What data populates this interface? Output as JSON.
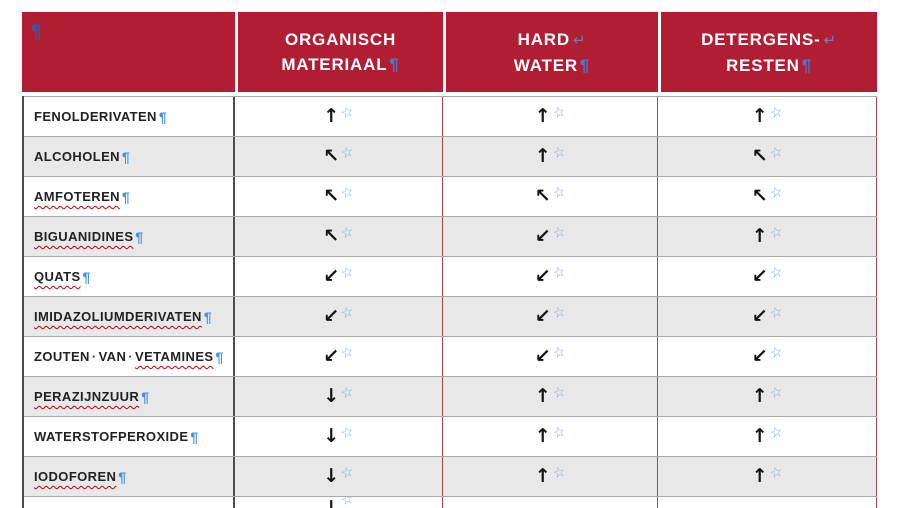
{
  "table": {
    "header": {
      "corner_pilcrow": "¶",
      "columns": [
        {
          "line1": "ORGANISCH",
          "line2": "MATERIAAL",
          "pilcrow": "¶"
        },
        {
          "line1": "HARD",
          "break_mark": "↵",
          "line2": "WATER",
          "pilcrow": "¶"
        },
        {
          "line1": "DETERGENS-",
          "break_mark": "↵",
          "line2": "RESTEN",
          "pilcrow": "¶"
        }
      ]
    },
    "rows": [
      {
        "zebra": false,
        "label": [
          {
            "t": "FENOLDERIVATEN"
          }
        ],
        "cells": [
          "up",
          "up",
          "up"
        ]
      },
      {
        "zebra": true,
        "label": [
          {
            "t": "ALCOHOLEN"
          }
        ],
        "cells": [
          "up_left",
          "up",
          "up_left"
        ]
      },
      {
        "zebra": false,
        "label": [
          {
            "t": "AMFOTEREN",
            "wavy": true
          }
        ],
        "cells": [
          "up_left",
          "up_left",
          "up_left"
        ]
      },
      {
        "zebra": true,
        "label": [
          {
            "t": "BIGUANIDINES",
            "wavy": true
          }
        ],
        "cells": [
          "up_left",
          "down_left",
          "up"
        ]
      },
      {
        "zebra": false,
        "label": [
          {
            "t": "QUATS",
            "wavy": true
          }
        ],
        "cells": [
          "down_left",
          "down_left",
          "down_left"
        ]
      },
      {
        "zebra": true,
        "label": [
          {
            "t": "IMIDAZOLIUMDERIVATEN",
            "wavy": true
          }
        ],
        "cells": [
          "down_left",
          "down_left",
          "down_left"
        ]
      },
      {
        "zebra": false,
        "label": [
          {
            "t": "ZOUTEN"
          },
          {
            "t": "·",
            "dot": true
          },
          {
            "t": "VAN"
          },
          {
            "t": "·",
            "dot": true
          },
          {
            "t": "VETAMINES",
            "wavy": true
          }
        ],
        "cells": [
          "down_left",
          "down_left",
          "down_left"
        ]
      },
      {
        "zebra": true,
        "label": [
          {
            "t": "PERAZIJNZUUR",
            "wavy": true
          }
        ],
        "cells": [
          "down",
          "up",
          "up"
        ]
      },
      {
        "zebra": false,
        "label": [
          {
            "t": "WATERSTOFPEROXIDE"
          }
        ],
        "cells": [
          "down",
          "up",
          "up"
        ]
      },
      {
        "zebra": true,
        "label": [
          {
            "t": "IODOFOREN",
            "wavy": true
          }
        ],
        "cells": [
          "down",
          "up",
          "up"
        ]
      }
    ],
    "partial_row": {
      "cells": [
        "down",
        "",
        ""
      ]
    }
  },
  "symbols": {
    "up": "↑",
    "up_left": "↖",
    "down_left": "↙",
    "down": "↓",
    "star": "☆",
    "pilcrow": "¶",
    "line_break": "↵",
    "space_dot": "·"
  },
  "colors": {
    "header_red": "#B11E33",
    "zebra_gray": "#E8E8E8",
    "grid_gray": "#A9A9A9",
    "column_border_red": "#9E4A46",
    "dark_border": "#4E4E4E",
    "mark_blue": "#4A90D9",
    "star_blue": "#7FA9D6",
    "squiggle_red": "#C00000"
  }
}
